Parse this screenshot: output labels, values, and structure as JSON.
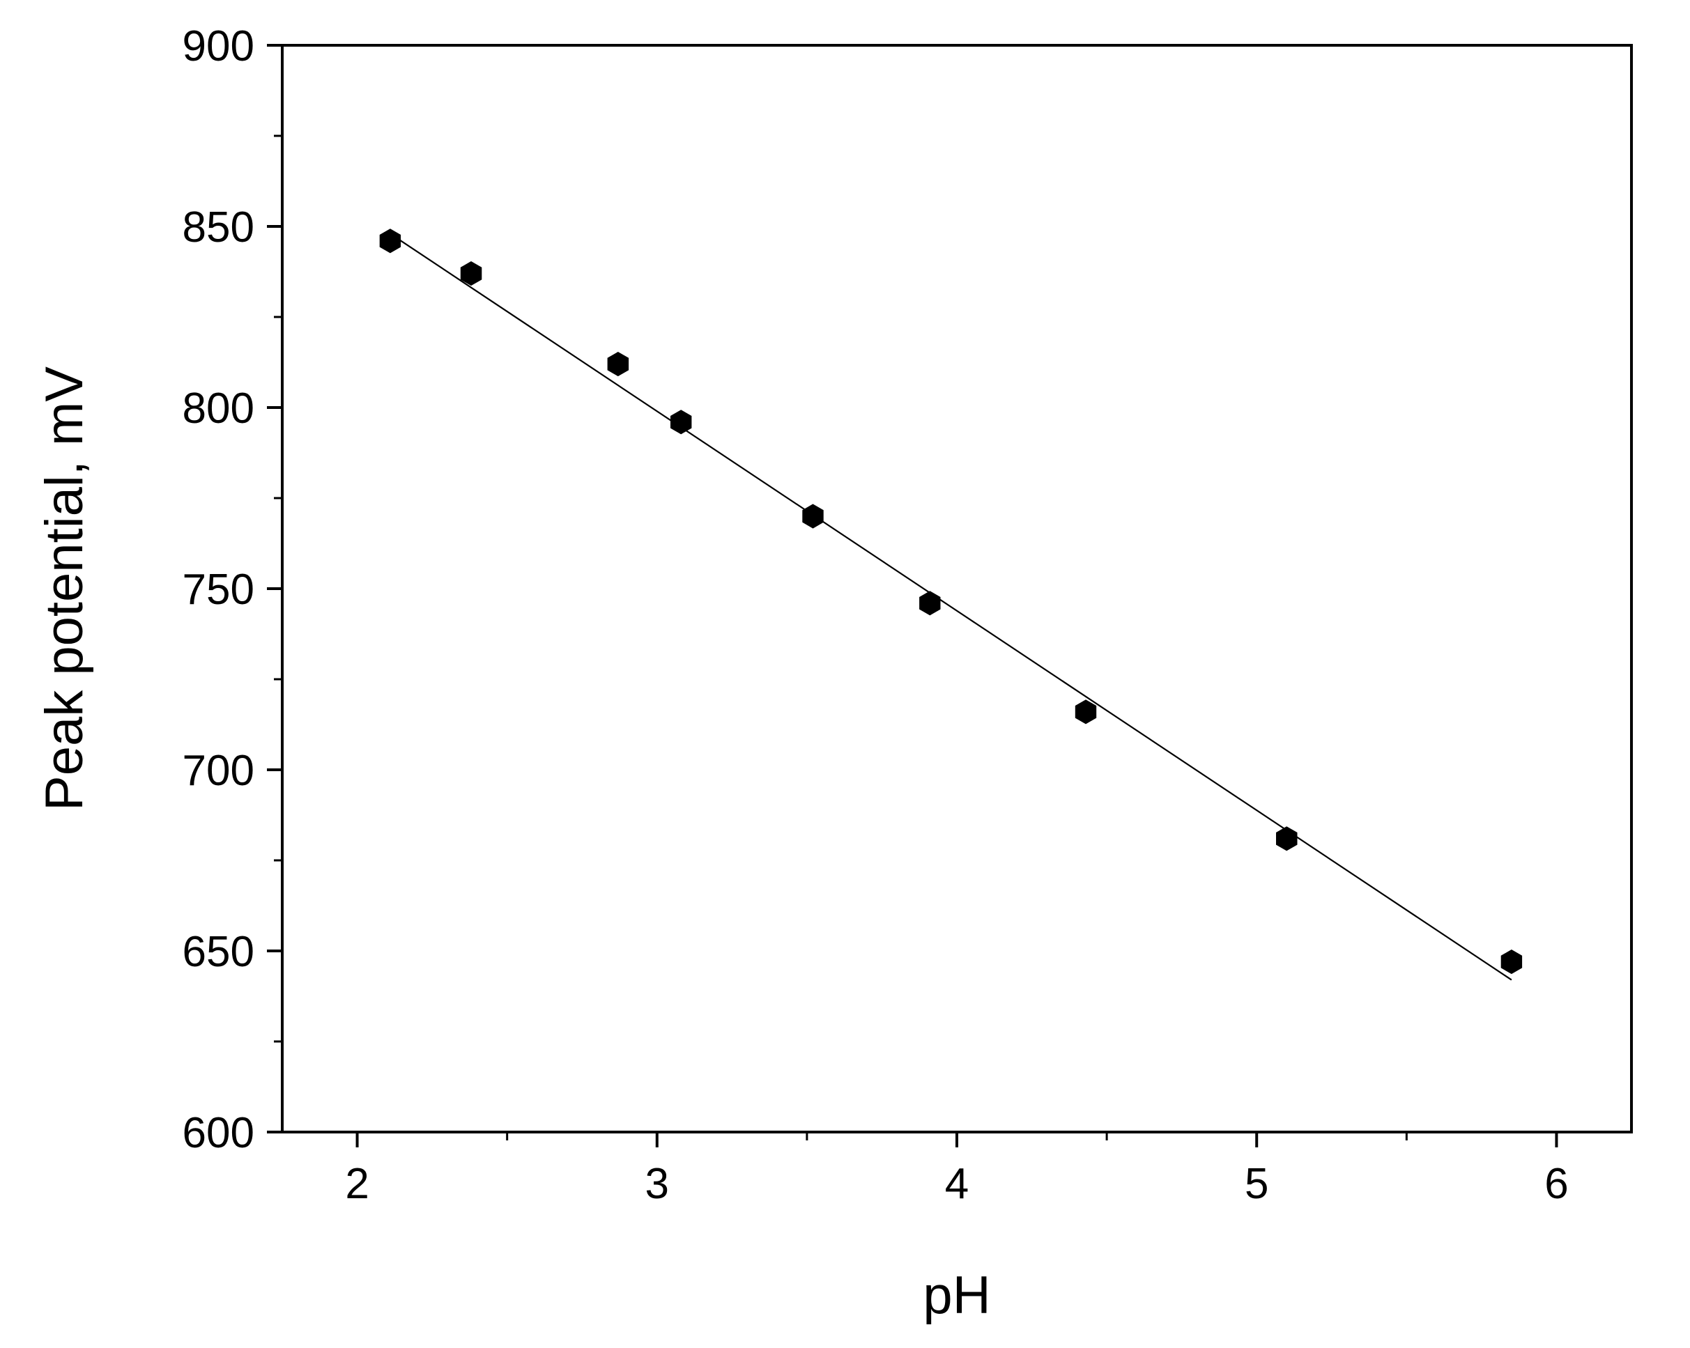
{
  "chart_data": {
    "type": "scatter",
    "title": "",
    "xlabel": "pH",
    "ylabel": "Peak potential, mV",
    "xlim": [
      1.75,
      6.25
    ],
    "ylim": [
      600,
      900
    ],
    "x_ticks": [
      2,
      3,
      4,
      5,
      6
    ],
    "x_tick_labels": [
      "2",
      "3",
      "4",
      "5",
      "6"
    ],
    "y_ticks": [
      600,
      650,
      700,
      750,
      800,
      850,
      900
    ],
    "y_tick_labels": [
      "600",
      "650",
      "700",
      "750",
      "800",
      "850",
      "900"
    ],
    "grid": false,
    "marker_color": "#000000",
    "series": [
      {
        "marker": "hexagon",
        "x": [
          2.11,
          2.38,
          2.87,
          3.08,
          3.52,
          3.91,
          4.43,
          5.1,
          5.85
        ],
        "y": [
          846,
          837,
          812,
          796,
          770,
          746,
          716,
          681,
          647
        ]
      }
    ],
    "fit_line": {
      "x": [
        2.11,
        5.85
      ],
      "y": [
        848,
        642
      ]
    }
  }
}
